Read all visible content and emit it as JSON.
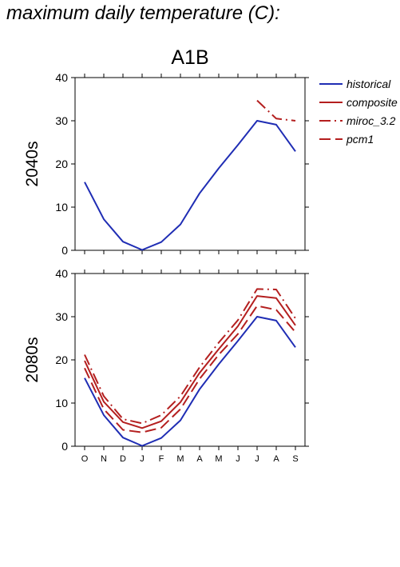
{
  "page": {
    "title": "maximum daily temperature (C):"
  },
  "chart_data": {
    "type": "line",
    "scenario": "A1B",
    "categories": [
      "O",
      "N",
      "D",
      "J",
      "F",
      "M",
      "A",
      "M",
      "J",
      "J",
      "A",
      "S"
    ],
    "ylim": [
      0,
      40
    ],
    "yticks": [
      0,
      10,
      20,
      30,
      40
    ],
    "legend_position": "right",
    "panels": [
      {
        "ylabel": "2040s",
        "series": [
          {
            "name": "historical",
            "color": "#1f2db4",
            "style": "solid",
            "values": [
              15.8,
              7.2,
              2.0,
              0.1,
              1.9,
              6.0,
              13.2,
              19.0,
              24.4,
              30.0,
              29.1,
              22.9
            ]
          },
          {
            "name": "miroc_3.2",
            "color": "#b41f1f",
            "style": "dashdot",
            "values": [
              null,
              null,
              null,
              null,
              null,
              null,
              null,
              null,
              null,
              34.7,
              30.5,
              30.0
            ]
          }
        ]
      },
      {
        "ylabel": "2080s",
        "series": [
          {
            "name": "historical",
            "color": "#1f2db4",
            "style": "solid",
            "values": [
              15.8,
              7.2,
              2.0,
              0.1,
              1.9,
              6.0,
              13.2,
              19.0,
              24.4,
              30.0,
              29.1,
              22.9
            ]
          },
          {
            "name": "composite",
            "color": "#b41f1f",
            "style": "solid",
            "values": [
              19.8,
              10.3,
              5.6,
              4.2,
              5.8,
              10.2,
              17.0,
              22.5,
              27.8,
              34.8,
              34.3,
              28.0
            ]
          },
          {
            "name": "miroc_3.2",
            "color": "#b41f1f",
            "style": "dashdot",
            "values": [
              21.2,
              11.6,
              6.3,
              5.3,
              7.2,
              11.6,
              18.3,
              24.0,
              29.2,
              36.4,
              36.3,
              29.6
            ]
          },
          {
            "name": "pcm1",
            "color": "#b41f1f",
            "style": "dashed",
            "values": [
              18.1,
              8.6,
              3.8,
              3.2,
              4.3,
              8.6,
              15.6,
              21.2,
              26.0,
              32.5,
              31.6,
              26.4
            ]
          }
        ]
      }
    ],
    "legend": [
      {
        "name": "historical",
        "color": "#1f2db4",
        "style": "solid"
      },
      {
        "name": "composite",
        "color": "#b41f1f",
        "style": "solid"
      },
      {
        "name": "miroc_3.2",
        "color": "#b41f1f",
        "style": "dashdot"
      },
      {
        "name": "pcm1",
        "color": "#b41f1f",
        "style": "dashed"
      }
    ]
  }
}
